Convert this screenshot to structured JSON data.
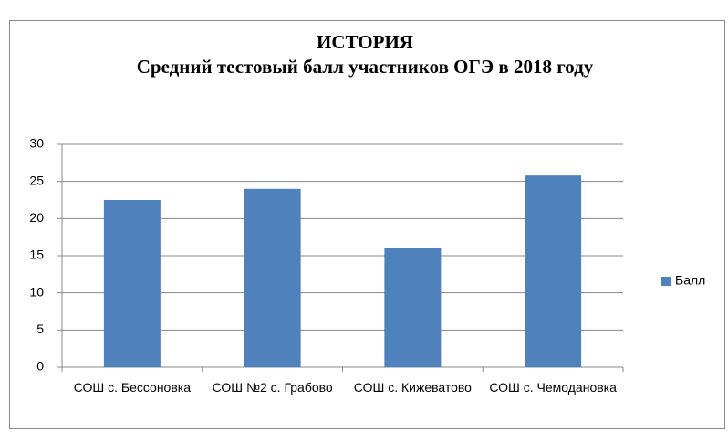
{
  "chart_data": {
    "type": "bar",
    "title": "ИСТОРИЯ",
    "subtitle": "Средний тестовый балл участников ОГЭ в 2018 году",
    "categories": [
      "СОШ с. Бессоновка",
      "СОШ №2 с. Грабово",
      "СОШ с. Кижеватово",
      "СОШ с. Чемодановка"
    ],
    "series": [
      {
        "name": "Балл",
        "color": "#4f81bd",
        "values": [
          22.5,
          24,
          16,
          25.8
        ]
      }
    ],
    "ylim": [
      0,
      30
    ],
    "yticks": [
      0,
      5,
      10,
      15,
      20,
      25,
      30
    ],
    "grid": true,
    "legend": "right"
  }
}
